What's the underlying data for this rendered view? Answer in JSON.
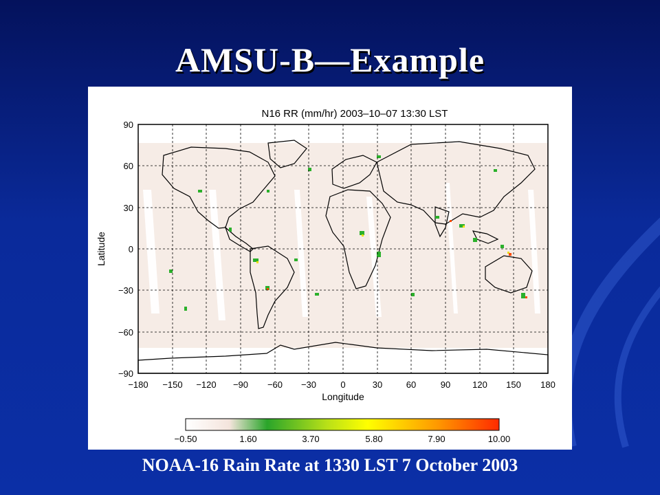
{
  "slide": {
    "title": "AMSU-B—Example",
    "caption": "NOAA-16 Rain Rate at 1330 LST 7 October 2003"
  },
  "map": {
    "title": "N16 RR (mm/hr) 2003–10–07 13:30 LST",
    "x_label": "Longitude",
    "y_label": "Latitude",
    "x_ticks": [
      "−180",
      "−150",
      "−120",
      "−90",
      "−60",
      "−30",
      "0",
      "30",
      "60",
      "90",
      "120",
      "150",
      "180"
    ],
    "y_ticks": [
      "90",
      "60",
      "30",
      "0",
      "−30",
      "−60",
      "−90"
    ],
    "colorbar": {
      "ticks": [
        "−0.50",
        "1.60",
        "3.70",
        "5.80",
        "7.90",
        "10.00"
      ],
      "colors": [
        "#ffffff",
        "#f4e4dc",
        "#2aa52a",
        "#b8e018",
        "#ffff00",
        "#ff9a00",
        "#ff2a00"
      ]
    },
    "background_color": "#f6ece6",
    "rain_colors": [
      "#2bb02b",
      "#7fd020",
      "#e8e000",
      "#ff8a00",
      "#ff2a00"
    ]
  }
}
